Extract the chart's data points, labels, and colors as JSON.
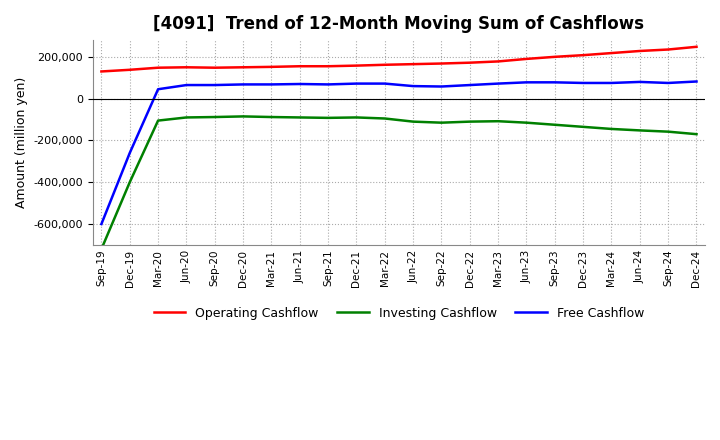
{
  "title": "[4091]  Trend of 12-Month Moving Sum of Cashflows",
  "ylabel": "Amount (million yen)",
  "background_color": "#ffffff",
  "grid_color": "#aaaaaa",
  "x_labels": [
    "Sep-19",
    "Dec-19",
    "Mar-20",
    "Jun-20",
    "Sep-20",
    "Dec-20",
    "Mar-21",
    "Jun-21",
    "Sep-21",
    "Dec-21",
    "Mar-22",
    "Jun-22",
    "Sep-22",
    "Dec-22",
    "Mar-23",
    "Jun-23",
    "Sep-23",
    "Dec-23",
    "Mar-24",
    "Jun-24",
    "Sep-24",
    "Dec-24"
  ],
  "operating_cf": [
    130000,
    138000,
    148000,
    150000,
    148000,
    150000,
    152000,
    155000,
    155000,
    158000,
    162000,
    165000,
    168000,
    172000,
    178000,
    190000,
    200000,
    208000,
    218000,
    228000,
    235000,
    248000
  ],
  "investing_cf": [
    -720000,
    -400000,
    -105000,
    -90000,
    -88000,
    -85000,
    -88000,
    -90000,
    -92000,
    -90000,
    -95000,
    -110000,
    -115000,
    -110000,
    -108000,
    -115000,
    -125000,
    -135000,
    -145000,
    -152000,
    -158000,
    -170000
  ],
  "free_cf": [
    -600000,
    -260000,
    45000,
    65000,
    65000,
    68000,
    68000,
    70000,
    68000,
    72000,
    72000,
    60000,
    58000,
    65000,
    72000,
    78000,
    78000,
    75000,
    75000,
    80000,
    75000,
    82000
  ],
  "operating_color": "#ff0000",
  "investing_color": "#008000",
  "free_color": "#0000ff",
  "ylim": [
    -700000,
    280000
  ],
  "yticks": [
    -600000,
    -400000,
    -200000,
    0,
    200000
  ],
  "line_width": 1.8
}
